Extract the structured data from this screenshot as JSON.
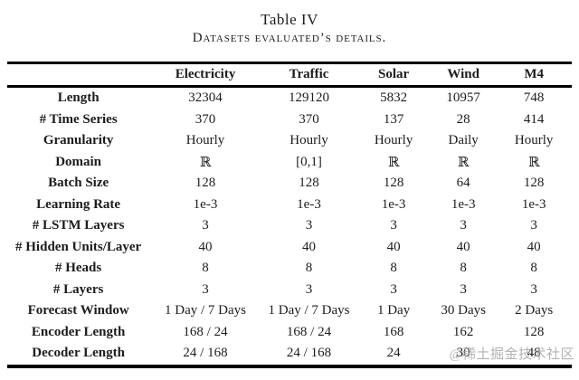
{
  "caption": {
    "title": "Table IV",
    "subtitle": "Datasets evaluated’s details."
  },
  "table": {
    "columns": [
      "",
      "Electricity",
      "Traffic",
      "Solar",
      "Wind",
      "M4"
    ],
    "rows": [
      {
        "label": "Length",
        "values": [
          "32304",
          "129120",
          "5832",
          "10957",
          "748"
        ]
      },
      {
        "label": "# Time Series",
        "values": [
          "370",
          "370",
          "137",
          "28",
          "414"
        ]
      },
      {
        "label": "Granularity",
        "values": [
          "Hourly",
          "Hourly",
          "Hourly",
          "Daily",
          "Hourly"
        ]
      },
      {
        "label": "Domain",
        "values": [
          "ℝ",
          "[0,1]",
          "ℝ",
          "ℝ",
          "ℝ"
        ]
      },
      {
        "label": "Batch Size",
        "values": [
          "128",
          "128",
          "128",
          "64",
          "128"
        ]
      },
      {
        "label": "Learning Rate",
        "values": [
          "1e-3",
          "1e-3",
          "1e-3",
          "1e-3",
          "1e-3"
        ]
      },
      {
        "label": "# LSTM Layers",
        "values": [
          "3",
          "3",
          "3",
          "3",
          "3"
        ]
      },
      {
        "label": "# Hidden Units/Layer",
        "values": [
          "40",
          "40",
          "40",
          "40",
          "40"
        ]
      },
      {
        "label": "# Heads",
        "values": [
          "8",
          "8",
          "8",
          "8",
          "8"
        ]
      },
      {
        "label": "# Layers",
        "values": [
          "3",
          "3",
          "3",
          "3",
          "3"
        ]
      },
      {
        "label": "Forecast Window",
        "values": [
          "1 Day / 7 Days",
          "1 Day / 7 Days",
          "1 Day",
          "30 Days",
          "2 Days"
        ]
      },
      {
        "label": "Encoder Length",
        "values": [
          "168 / 24",
          "168 / 24",
          "168",
          "162",
          "128"
        ]
      },
      {
        "label": "Decoder Length",
        "values": [
          "24 / 168",
          "24 / 168",
          "24",
          "30",
          "48"
        ]
      }
    ]
  },
  "watermark": "@稀土掘金技术社区",
  "colors": {
    "text": "#1c1c1c",
    "rule": "#000000",
    "watermark": "#a4a4a4",
    "background": "#ffffff"
  }
}
